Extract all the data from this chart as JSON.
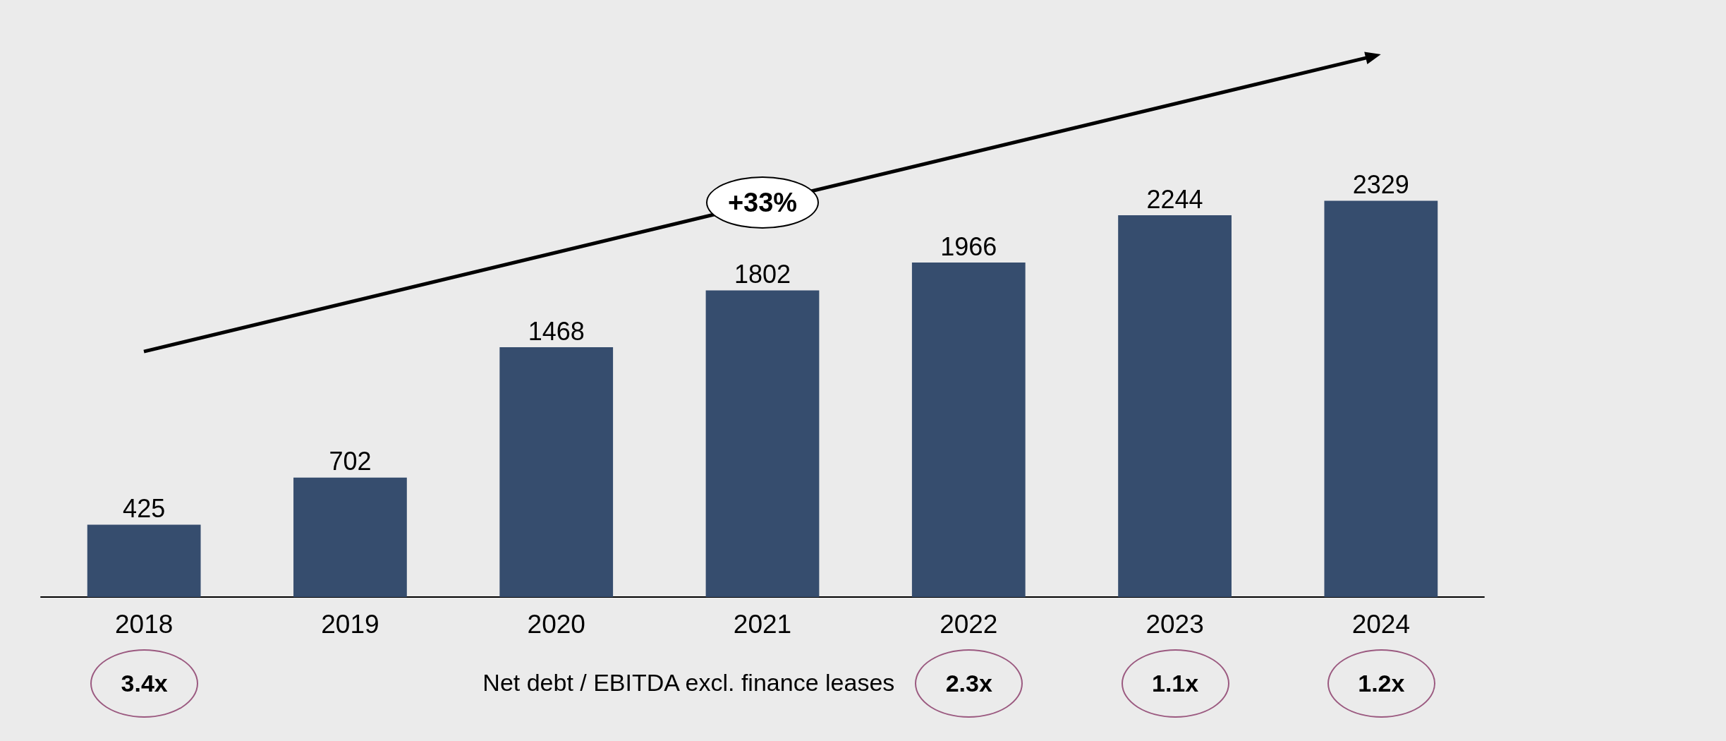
{
  "chart_data": {
    "type": "bar",
    "categories": [
      "2018",
      "2019",
      "2020",
      "2021",
      "2022",
      "2023",
      "2024"
    ],
    "values": [
      425,
      702,
      1468,
      1802,
      1966,
      2244,
      2329
    ],
    "color": "#364d6e",
    "data_labels": true,
    "grid": false,
    "annotations": [
      "+33%",
      "Net debt / EBITDA excl. finance leases",
      "3.4x",
      "2.3x",
      "1.1x",
      "1.2x"
    ]
  }
}
